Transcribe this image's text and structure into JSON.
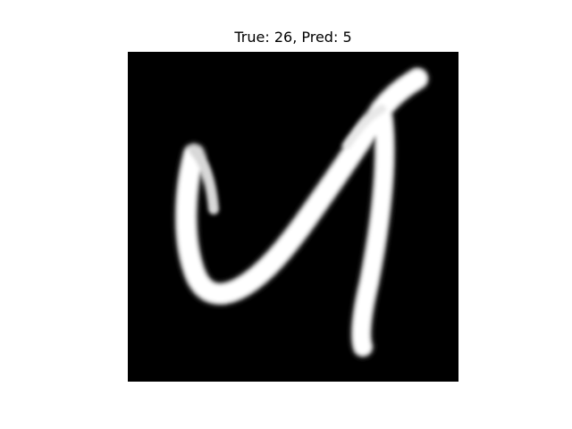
{
  "figure": {
    "title": "True: 26, Pred: 5"
  },
  "image": {
    "background_color": "#000000",
    "stroke_color": "#ffffff",
    "content": "grayscale handwritten glyph"
  }
}
